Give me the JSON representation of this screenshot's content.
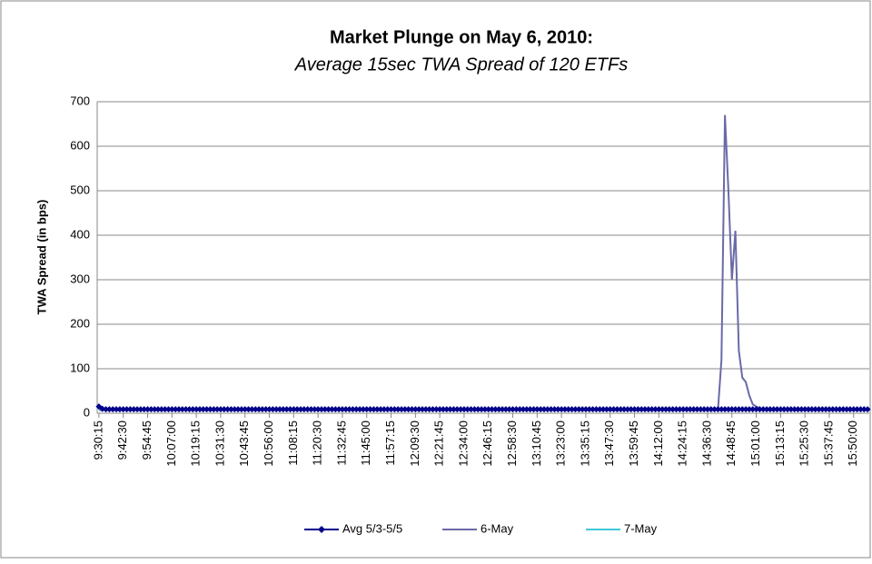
{
  "chart_data": {
    "type": "line",
    "title": "Market Plunge on May 6, 2010:",
    "subtitle": "Average  15sec TWA Spread of 120 ETFs",
    "y_label": "TWA Spread (in bps)",
    "ylim": [
      0,
      700
    ],
    "yticks": [
      0,
      100,
      200,
      300,
      400,
      500,
      600,
      700
    ],
    "grid": true,
    "legend": "bottom",
    "categories": [
      "9:30:15",
      null,
      null,
      null,
      null,
      null,
      null,
      "9:42:30",
      null,
      null,
      null,
      null,
      null,
      null,
      "9:54:45",
      null,
      null,
      null,
      null,
      null,
      null,
      "10:07:00",
      null,
      null,
      null,
      null,
      null,
      null,
      "10:19:15",
      null,
      null,
      null,
      null,
      null,
      null,
      "10:31:30",
      null,
      null,
      null,
      null,
      null,
      null,
      "10:43:45",
      null,
      null,
      null,
      null,
      null,
      null,
      "10:56:00",
      null,
      null,
      null,
      null,
      null,
      null,
      "11:08:15",
      null,
      null,
      null,
      null,
      null,
      null,
      "11:20:30",
      null,
      null,
      null,
      null,
      null,
      null,
      "11:32:45",
      null,
      null,
      null,
      null,
      null,
      null,
      "11:45:00",
      null,
      null,
      null,
      null,
      null,
      null,
      "11:57:15",
      null,
      null,
      null,
      null,
      null,
      null,
      "12:09:30",
      null,
      null,
      null,
      null,
      null,
      null,
      "12:21:45",
      null,
      null,
      null,
      null,
      null,
      null,
      "12:34:00",
      null,
      null,
      null,
      null,
      null,
      null,
      "12:46:15",
      null,
      null,
      null,
      null,
      null,
      null,
      "12:58:30",
      null,
      null,
      null,
      null,
      null,
      null,
      "13:10:45",
      null,
      null,
      null,
      null,
      null,
      null,
      "13:23:00",
      null,
      null,
      null,
      null,
      null,
      null,
      "13:35:15",
      null,
      null,
      null,
      null,
      null,
      null,
      "13:47:30",
      null,
      null,
      null,
      null,
      null,
      null,
      "13:59:45",
      null,
      null,
      null,
      null,
      null,
      null,
      "14:12:00",
      null,
      null,
      null,
      null,
      null,
      null,
      "14:24:15",
      null,
      null,
      null,
      null,
      null,
      null,
      "14:36:30",
      null,
      null,
      null,
      null,
      null,
      null,
      "14:48:45",
      null,
      null,
      null,
      null,
      null,
      null,
      "15:01:00",
      null,
      null,
      null,
      null,
      null,
      null,
      "15:13:15",
      null,
      null,
      null,
      null,
      null,
      null,
      "15:25:30",
      null,
      null,
      null,
      null,
      null,
      null,
      "15:37:45",
      null,
      null,
      null,
      null,
      null,
      null,
      "15:50:00",
      null,
      null,
      null,
      null
    ],
    "series": [
      {
        "name": "Avg 5/3-5/5",
        "color": "#00008b",
        "marker": "diamond",
        "values": [
          15,
          10,
          9,
          9,
          9,
          9,
          9,
          9,
          9,
          9,
          9,
          9,
          9,
          9,
          9,
          9,
          9,
          9,
          9,
          9,
          9,
          9,
          9,
          9,
          9,
          9,
          9,
          9,
          9,
          9,
          9,
          9,
          9,
          9,
          9,
          9,
          9,
          9,
          9,
          9,
          9,
          9,
          9,
          9,
          9,
          9,
          9,
          9,
          9,
          9,
          9,
          9,
          9,
          9,
          9,
          9,
          9,
          9,
          9,
          9,
          9,
          9,
          9,
          9,
          9,
          9,
          9,
          9,
          9,
          9,
          9,
          9,
          9,
          9,
          9,
          9,
          9,
          9,
          9,
          9,
          9,
          9,
          9,
          9,
          9,
          9,
          9,
          9,
          9,
          9,
          9,
          9,
          9,
          9,
          9,
          9,
          9,
          9,
          9,
          9,
          9,
          9,
          9,
          9,
          9,
          9,
          9,
          9,
          9,
          9,
          9,
          9,
          9,
          9,
          9,
          9,
          9,
          9,
          9,
          9,
          9,
          9,
          9,
          9,
          9,
          9,
          9,
          9,
          9,
          9,
          9,
          9,
          9,
          9,
          9,
          9,
          9,
          9,
          9,
          9,
          9,
          9,
          9,
          9,
          9,
          9,
          9,
          9,
          9,
          9,
          9,
          9,
          9,
          9,
          9,
          9,
          9,
          9,
          9,
          9,
          9,
          9,
          9,
          9,
          9,
          9,
          9,
          9,
          9,
          9,
          9,
          9,
          9,
          9,
          9,
          9,
          9,
          9,
          9,
          9,
          9,
          9,
          9,
          9,
          9,
          9,
          9,
          9,
          9,
          9,
          9,
          9,
          9,
          9,
          9,
          9,
          9,
          9,
          9,
          9,
          9,
          9,
          9,
          9,
          9,
          9,
          9,
          9,
          9,
          9,
          9,
          9,
          9,
          9,
          9,
          9,
          9,
          9,
          9,
          9,
          9,
          9
        ]
      },
      {
        "name": "6-May",
        "color": "#6a6aa8",
        "values": [
          7,
          7,
          7,
          7,
          7,
          7,
          7,
          7,
          7,
          7,
          7,
          7,
          7,
          7,
          7,
          7,
          7,
          7,
          7,
          7,
          7,
          7,
          7,
          7,
          7,
          7,
          7,
          7,
          7,
          7,
          7,
          7,
          7,
          7,
          7,
          7,
          7,
          7,
          7,
          7,
          7,
          7,
          7,
          7,
          7,
          7,
          7,
          7,
          7,
          7,
          7,
          7,
          7,
          7,
          7,
          7,
          7,
          7,
          7,
          7,
          7,
          7,
          7,
          7,
          7,
          7,
          7,
          7,
          7,
          7,
          7,
          7,
          7,
          7,
          7,
          7,
          7,
          7,
          7,
          7,
          7,
          7,
          7,
          7,
          7,
          7,
          7,
          7,
          7,
          7,
          7,
          7,
          7,
          7,
          7,
          7,
          7,
          7,
          7,
          7,
          7,
          7,
          7,
          7,
          7,
          7,
          7,
          7,
          7,
          7,
          7,
          7,
          7,
          7,
          7,
          7,
          7,
          7,
          7,
          7,
          7,
          7,
          7,
          7,
          7,
          7,
          7,
          7,
          7,
          7,
          7,
          7,
          7,
          7,
          7,
          7,
          7,
          7,
          7,
          7,
          7,
          7,
          7,
          7,
          7,
          7,
          7,
          7,
          7,
          7,
          7,
          7,
          7,
          7,
          7,
          7,
          7,
          7,
          7,
          7,
          7,
          7,
          7,
          7,
          7,
          7,
          7,
          7,
          7,
          7,
          7,
          7,
          7,
          7,
          7,
          7,
          7,
          7,
          8,
          120,
          670,
          500,
          300,
          410,
          140,
          80,
          70,
          40,
          20,
          15,
          12,
          7,
          7,
          7,
          7,
          7,
          7,
          7,
          7,
          7,
          7,
          7,
          7,
          7,
          7,
          7,
          7,
          7,
          7,
          7,
          7,
          7,
          7,
          7,
          7,
          7,
          7,
          7,
          7,
          7,
          7,
          7
        ]
      },
      {
        "name": "7-May",
        "color": "#40c8d8",
        "values": [
          8,
          8,
          8,
          8,
          8,
          8,
          8,
          8,
          8,
          8,
          8,
          8,
          8,
          8,
          8,
          8,
          8,
          8,
          8,
          8,
          8,
          8,
          8,
          8,
          8,
          8,
          8,
          8,
          8,
          8,
          8,
          8,
          8,
          8,
          8,
          8,
          8,
          8,
          8,
          8,
          8,
          8,
          8,
          8,
          8,
          8,
          8,
          8,
          8,
          8,
          8,
          8,
          8,
          8,
          8,
          8,
          8,
          8,
          8,
          8,
          8,
          8,
          8,
          8,
          8,
          8,
          8,
          8,
          8,
          8,
          8,
          8,
          8,
          8,
          8,
          8,
          8,
          8,
          8,
          8,
          8,
          8,
          8,
          8,
          8,
          8,
          8,
          8,
          8,
          8,
          8,
          8,
          8,
          8,
          8,
          8,
          8,
          8,
          8,
          8,
          8,
          8,
          8,
          8,
          8,
          8,
          8,
          8,
          8,
          8,
          8,
          8,
          8,
          8,
          8,
          8,
          8,
          8,
          8,
          8,
          8,
          8,
          8,
          8,
          8,
          8,
          8,
          8,
          8,
          8,
          8,
          8,
          8,
          8,
          8,
          8,
          8,
          8,
          8,
          8,
          8,
          8,
          8,
          8,
          8,
          8,
          8,
          8,
          8,
          8,
          8,
          8,
          8,
          8,
          8,
          8,
          8,
          8,
          8,
          8,
          8,
          8,
          8,
          8,
          8,
          8,
          8,
          8,
          8,
          8,
          8,
          8,
          8,
          8,
          8,
          8,
          8,
          8,
          8,
          8,
          8,
          8,
          8,
          8,
          8,
          8,
          8,
          8,
          8,
          8,
          8,
          8,
          8,
          8,
          8,
          8,
          8,
          8,
          8,
          8,
          8,
          8,
          8,
          8,
          8,
          8,
          8,
          8,
          8,
          8,
          8,
          8,
          8,
          8,
          8,
          8,
          8,
          8,
          8,
          8,
          8,
          8
        ]
      }
    ]
  }
}
